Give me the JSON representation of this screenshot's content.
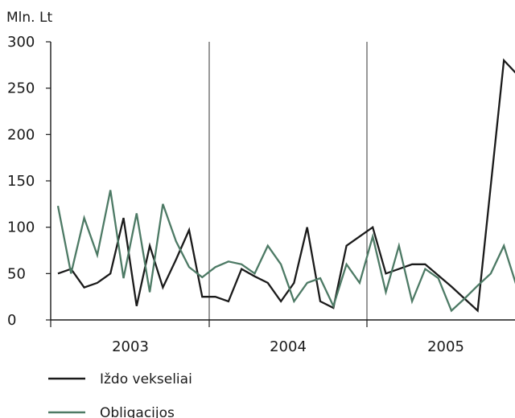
{
  "chart_data": {
    "type": "line",
    "ylabel": "Mln. Lt",
    "ylim": [
      0,
      300
    ],
    "yticks": [
      "0",
      "50",
      "100",
      "150",
      "200",
      "250",
      "300"
    ],
    "year_labels": [
      "2003",
      "2004",
      "2005"
    ],
    "grid": "vertical lines at year boundaries",
    "legend_position": "bottom-left",
    "colors": {
      "izdo": "#1a1a1a",
      "obligacijos": "#4d7a65",
      "axis": "#1a1a1a",
      "grid": "#1a1a1a"
    },
    "series": [
      {
        "name": "Iždo vekseliai",
        "key": "izdo",
        "values": [
          50,
          55,
          35,
          40,
          50,
          110,
          15,
          80,
          35,
          65,
          97,
          25,
          25,
          20,
          55,
          47,
          40,
          20,
          40,
          100,
          20,
          13,
          80,
          90,
          100,
          50,
          55,
          60,
          60,
          48,
          36,
          23,
          10,
          145,
          280,
          265
        ]
      },
      {
        "name": "Obligacijos",
        "key": "obligacijos",
        "values": [
          123,
          50,
          110,
          70,
          140,
          45,
          115,
          30,
          125,
          85,
          57,
          46,
          57,
          63,
          60,
          50,
          80,
          60,
          20,
          40,
          45,
          15,
          60,
          40,
          90,
          30,
          80,
          20,
          55,
          45,
          10,
          23,
          37,
          50,
          80,
          35
        ]
      }
    ]
  }
}
